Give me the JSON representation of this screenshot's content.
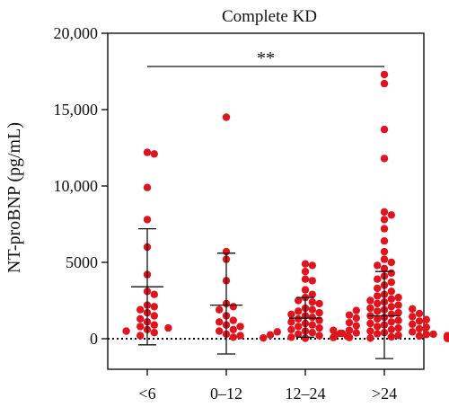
{
  "chart_data": {
    "type": "scatter",
    "title": "Complete KD",
    "ylabel": "NT-proBNP (pg/mL)",
    "xlabel": "",
    "categories": [
      "<6",
      "0–12",
      "12–24",
      ">24"
    ],
    "ylim": [
      -2000,
      20000
    ],
    "yticks": [
      0,
      5000,
      10000,
      15000,
      20000
    ],
    "ytick_labels": [
      "0",
      "5000",
      "10,000",
      "15,000",
      "20,000"
    ],
    "zero_line": "dotted",
    "grid": false,
    "point_color": "#e0141e",
    "error_bar_color": "#111111",
    "groups": [
      {
        "category": "<6",
        "mean": 3400,
        "sd_low": -400,
        "sd_high": 7200,
        "points": [
          12200,
          12100,
          9900,
          7800,
          6000,
          4200,
          3100,
          2900,
          2200,
          2100,
          1900,
          1700,
          1500,
          1300,
          1100,
          900,
          800,
          700,
          600,
          500,
          400,
          200
        ]
      },
      {
        "category": "0–12",
        "mean": 2200,
        "sd_low": -1000,
        "sd_high": 5600,
        "points": [
          14500,
          5700,
          5200,
          3800,
          2300,
          2100,
          1900,
          1500,
          1200,
          1100,
          900,
          800,
          600,
          500,
          300,
          200,
          100
        ]
      },
      {
        "category": "12–24",
        "mean": 1350,
        "sd_low": 100,
        "sd_high": 2700,
        "points": [
          4900,
          4800,
          4400,
          3900,
          3800,
          3200,
          2900,
          2700,
          2500,
          2400,
          2300,
          2000,
          1900,
          1800,
          1700,
          1600,
          1500,
          1400,
          1300,
          1200,
          1100,
          1000,
          900,
          800,
          700,
          600,
          550,
          500,
          450,
          400,
          350,
          300,
          250,
          200,
          150,
          100,
          80,
          50,
          30
        ]
      },
      {
        "category": ">24",
        "mean": 1500,
        "sd_low": -1300,
        "sd_high": 4400,
        "points": [
          17300,
          16700,
          13700,
          11800,
          8300,
          8100,
          7800,
          7200,
          6400,
          5700,
          5200,
          5000,
          4800,
          4600,
          4300,
          4100,
          3900,
          3700,
          3500,
          3300,
          3100,
          2900,
          2800,
          2700,
          2600,
          2500,
          2400,
          2300,
          2200,
          2100,
          2000,
          1950,
          1900,
          1850,
          1800,
          1700,
          1650,
          1600,
          1550,
          1500,
          1450,
          1400,
          1350,
          1300,
          1250,
          1200,
          1150,
          1100,
          1050,
          1000,
          950,
          900,
          850,
          800,
          750,
          700,
          650,
          600,
          550,
          500,
          450,
          400,
          380,
          350,
          320,
          300,
          280,
          250,
          220,
          200,
          180,
          150,
          120,
          100,
          80,
          60,
          40,
          20
        ]
      }
    ],
    "significance": {
      "from": "<6",
      "to": ">24",
      "label": "**"
    }
  }
}
